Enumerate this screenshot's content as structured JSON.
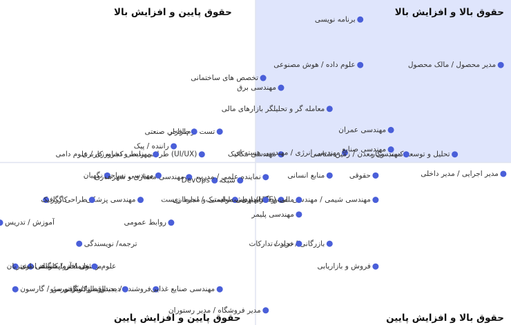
{
  "chart_data": {
    "type": "scatter",
    "xlim": [
      -100,
      100
    ],
    "ylim": [
      -100,
      100
    ],
    "color": "#4a5fd9",
    "highlight_color": "#dfe5fc",
    "quadrants": [
      {
        "corner": "top-right",
        "label": "حقوق بالا و افزایش بالا"
      },
      {
        "corner": "top-left",
        "label": "حقوق پایین و افزایش بالا"
      },
      {
        "corner": "bottom-right",
        "label": "حقوق بالا و افزایش پایین"
      },
      {
        "corner": "bottom-left",
        "label": "حقوق پایین و افزایش پایین"
      }
    ],
    "labels": [
      "برنامه نویسی",
      "علوم داده / هوش مصنوعی",
      "مدیر محصول / مالک محصول",
      "تخصص های ساختمانی",
      "مهندسی برق",
      "معامله گر و تحلیلگر بازارهای مالی",
      "مهندسی عمران",
      "تحلیل و توسعه کسب وکار",
      "تست نرم افزار",
      "طراحی صنعتی",
      "طراحی رابط و تجربه کاربری (UI/UX)",
      "راننده / پیک",
      "مهندسی کشاورزی / علوم دامی",
      "مهندسی معماری و شهرسازی",
      "مهندسی مکانیک",
      "مهندسی انرژی / مهندسی هسته ای",
      "مهندسی صنایع",
      "مهندسی معدن / زمین شناسی",
      "نگهبان",
      "مهندسی نساجی",
      "DevOps",
      "شبکه",
      "نماینده علمی / مدرب",
      "منابع انسانی",
      "حقوقی",
      "مدیر اجرایی / مدیر داخلی",
      "کارگر",
      "مهندسی پزشکی",
      "لجستیک / انبارداری",
      "بهداشت، ایمنی و محیط زیست (HSE)",
      "مهندسی شیمی / مهندسی نفت و گاز",
      "مالی و حسابداری",
      "مهندسی مواد",
      "طراحی گرافیک",
      "آموزش / تدریس",
      "روابط عمومی",
      "مهندسی پلیمر",
      "ترجمه/ نویسندگی",
      "بازرگانی / تجارت",
      "خرید / تدارکات",
      "علوم زیستی / آزمایشگاهی",
      "مسئول دفتر / کارمند اداری",
      "خدمات و پشتیبانی مشتریان",
      "فروش و بازاریابی",
      "فروشنده / صندوقدار / ویزیتور",
      "مهندسی صنایع غذایی",
      "باریستا / کافی من / گارسون",
      "دیجیتال مارکتینگ و سئو",
      "مدیر فروشگاه / مدیر رستوران"
    ],
    "x": [
      41,
      41,
      96,
      3,
      10,
      29,
      53,
      78,
      -14,
      -24,
      -21,
      -32,
      -39,
      -26,
      10,
      35,
      53,
      59,
      -58,
      -38,
      -16,
      -6,
      4,
      29,
      47,
      97,
      -82,
      -45,
      -8,
      10,
      47,
      17,
      4,
      -64,
      -100,
      -33,
      17,
      -69,
      29,
      17,
      -88,
      -94,
      -63,
      47,
      -39,
      -14,
      -94,
      -51,
      4
    ],
    "y": [
      88,
      60,
      60,
      52,
      46,
      33,
      20,
      5,
      19,
      19,
      5,
      10,
      5,
      -9,
      5,
      6,
      8,
      5,
      -8,
      -8,
      -11,
      -11,
      -9,
      -8,
      -8,
      -7,
      -23,
      -23,
      -23,
      -23,
      -23,
      -23,
      -23,
      -23,
      -37,
      -37,
      -32,
      -50,
      -50,
      -50,
      -64,
      -64,
      -64,
      -64,
      -78,
      -78,
      -78,
      -78,
      -91
    ]
  }
}
